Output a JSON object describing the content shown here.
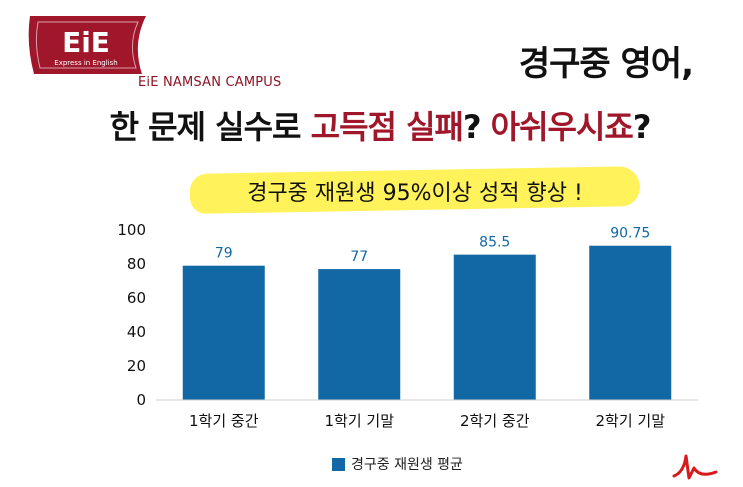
{
  "brand": {
    "logo_text": "EiE",
    "logo_tagline": "Express in English",
    "campus": "EiE NAMSAN CAMPUS"
  },
  "headline": {
    "line1": "경구중 영어,",
    "line2_prefix": "한 문제 실수로 ",
    "line2_highlight1": "고득점 실패",
    "line2_mid": "? ",
    "line2_highlight2": "아쉬우시죠",
    "line2_suffix": "?"
  },
  "banner": {
    "text": "경구중 재원생 95%이상 성적 향상 !"
  },
  "colors": {
    "brand": "#a0162a",
    "bar": "#1268a4",
    "highlight": "#fff25a"
  },
  "chart_data": {
    "type": "bar",
    "categories": [
      "1학기 중간",
      "1학기 기말",
      "2학기 중간",
      "2학기 기말"
    ],
    "series": [
      {
        "name": "경구중 재원생 평균",
        "values": [
          79,
          77,
          85.5,
          90.75
        ]
      }
    ],
    "data_labels": [
      "79",
      "77",
      "85.5",
      "90.75"
    ],
    "ylim": [
      0,
      100
    ],
    "yticks": [
      0,
      20,
      40,
      60,
      80,
      100
    ],
    "grid": false,
    "legend": "bottom"
  }
}
